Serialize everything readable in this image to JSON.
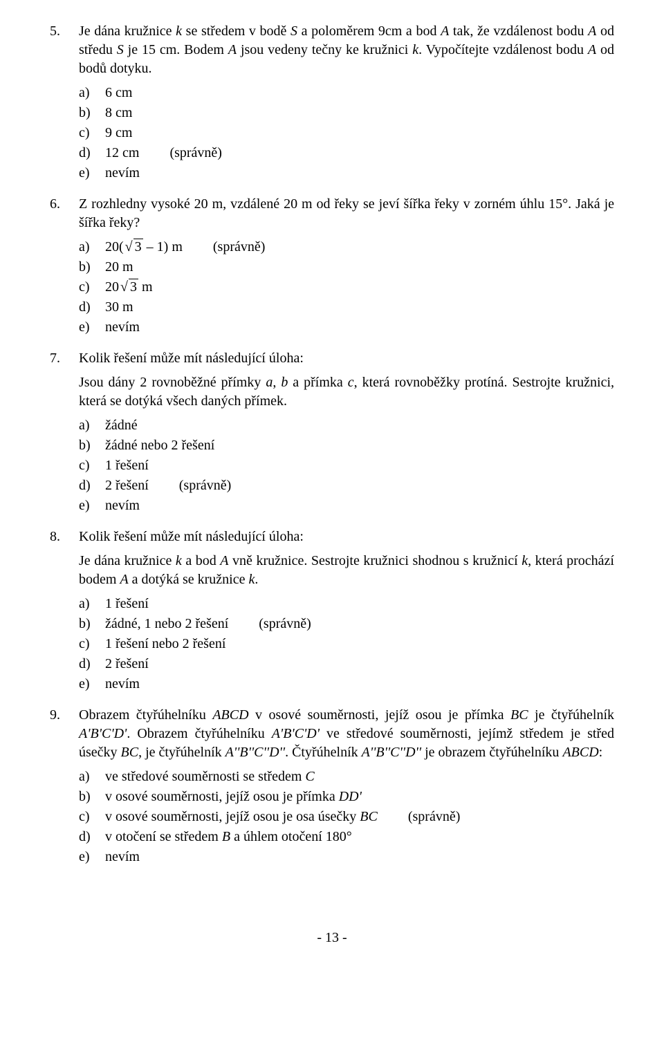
{
  "q5": {
    "num": "5.",
    "text": "Je dána kružnice k se středem v bodě S a poloměrem 9cm a bod A tak, že vzdálenost bodu A od středu S je 15 cm. Bodem A jsou vedeny tečny ke kružnici k. Vypočítejte vzdálenost bodu A od bodů dotyku.",
    "a": "6 cm",
    "b": "8 cm",
    "c": "9 cm",
    "d": "12 cm",
    "e": "nevím",
    "correct": "(správně)"
  },
  "q6": {
    "num": "6.",
    "text": "Z rozhledny vysoké 20 m, vzdálené 20 m od řeky se jeví šířka řeky v zorném úhlu 15°. Jaká je šířka řeky?",
    "a_pre": "20(",
    "a_rad": "3",
    "a_post": " – 1) m",
    "b": "20 m",
    "c_pre": "20",
    "c_rad": "3",
    "c_post": " m",
    "d": "30 m",
    "e": "nevím",
    "correct": "(správně)"
  },
  "q7": {
    "num": "7.",
    "text": "Kolik řešení může mít následující úloha:",
    "sub": "Jsou dány 2 rovnoběžné přímky a, b a přímka c, která rovnoběžky protíná. Sestrojte kružnici, která se dotýká všech daných přímek.",
    "a": "žádné",
    "b": "žádné nebo 2 řešení",
    "c": "1 řešení",
    "d": "2 řešení",
    "e": "nevím",
    "correct": "(správně)"
  },
  "q8": {
    "num": "8.",
    "text": "Kolik řešení může mít následující úloha:",
    "sub": "Je dána kružnice k a bod A vně kružnice. Sestrojte kružnici shodnou s kružnicí k, která prochází bodem A a dotýká se kružnice k.",
    "a": "1 řešení",
    "b": "žádné, 1 nebo 2 řešení",
    "c": "1 řešení nebo 2 řešení",
    "d": "2 řešení",
    "e": "nevím",
    "correct": "(správně)"
  },
  "q9": {
    "num": "9.",
    "text": "Obrazem čtyřúhelníku ABCD v osové souměrnosti, jejíž osou je přímka BC je čtyřúhelník A'B'C'D'. Obrazem čtyřúhelníku A'B'C'D' ve středové souměrnosti, jejímž středem je střed úsečky BC, je čtyřúhelník A''B''C''D''. Čtyřúhelník A''B''C''D'' je obrazem čtyřúhelníku ABCD:",
    "a": "ve středové souměrnosti se středem C",
    "b": "v osové souměrnosti, jejíž osou je přímka DD'",
    "c": "v osové souměrnosti, jejíž osou je osa úsečky BC",
    "d": "v otočení se středem B a úhlem otočení 180°",
    "e": "nevím",
    "correct": "(správně)"
  },
  "letters": {
    "a": "a)",
    "b": "b)",
    "c": "c)",
    "d": "d)",
    "e": "e)"
  },
  "pagenum": "- 13 -"
}
